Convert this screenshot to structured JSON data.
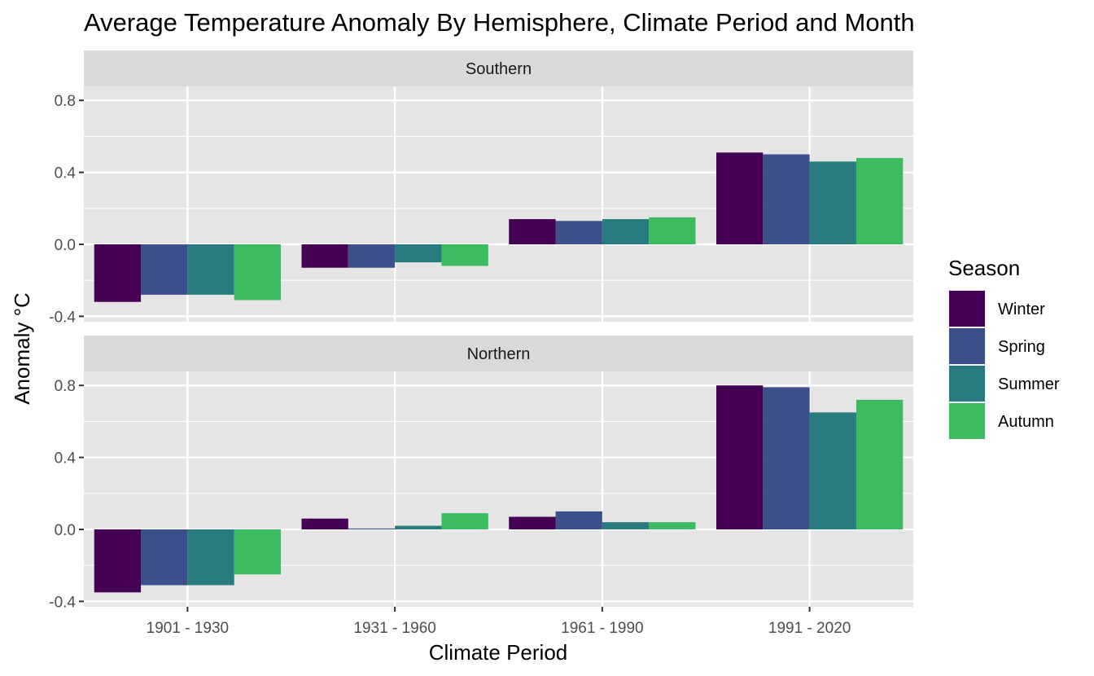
{
  "chart_data": {
    "type": "bar",
    "title": "Average Temperature Anomaly By Hemisphere, Climate Period and Month",
    "xlabel": "Climate Period",
    "ylabel": "Anomaly °C",
    "categories": [
      "1901 - 1930",
      "1931 - 1960",
      "1961 - 1990",
      "1991 - 2020"
    ],
    "ylim": [
      -0.4,
      0.8
    ],
    "yticks": [
      -0.4,
      0.0,
      0.4,
      0.8
    ],
    "ytick_labels": [
      "-0.4",
      "0.0",
      "0.4",
      "0.8"
    ],
    "grid": true,
    "legend": {
      "title": "Season",
      "position": "right",
      "entries": [
        "Winter",
        "Spring",
        "Summer",
        "Autumn"
      ]
    },
    "colors": {
      "Winter": "#440154",
      "Spring": "#3b4f8a",
      "Summer": "#287c7f",
      "Autumn": "#3dbb61",
      "panel_bg": "#e5e5e5",
      "strip_bg": "#d9d9d9",
      "grid": "#ffffff"
    },
    "facets": [
      {
        "label": "Southern",
        "series": [
          {
            "name": "Winter",
            "values": [
              -0.32,
              -0.13,
              0.14,
              0.51
            ]
          },
          {
            "name": "Spring",
            "values": [
              -0.28,
              -0.13,
              0.13,
              0.5
            ]
          },
          {
            "name": "Summer",
            "values": [
              -0.28,
              -0.1,
              0.14,
              0.46
            ]
          },
          {
            "name": "Autumn",
            "values": [
              -0.31,
              -0.12,
              0.15,
              0.48
            ]
          }
        ]
      },
      {
        "label": "Northern",
        "series": [
          {
            "name": "Winter",
            "values": [
              -0.35,
              0.06,
              0.07,
              0.8
            ]
          },
          {
            "name": "Spring",
            "values": [
              -0.31,
              0.005,
              0.1,
              0.79
            ]
          },
          {
            "name": "Summer",
            "values": [
              -0.31,
              0.02,
              0.04,
              0.65
            ]
          },
          {
            "name": "Autumn",
            "values": [
              -0.25,
              0.09,
              0.04,
              0.72
            ]
          }
        ]
      }
    ]
  }
}
